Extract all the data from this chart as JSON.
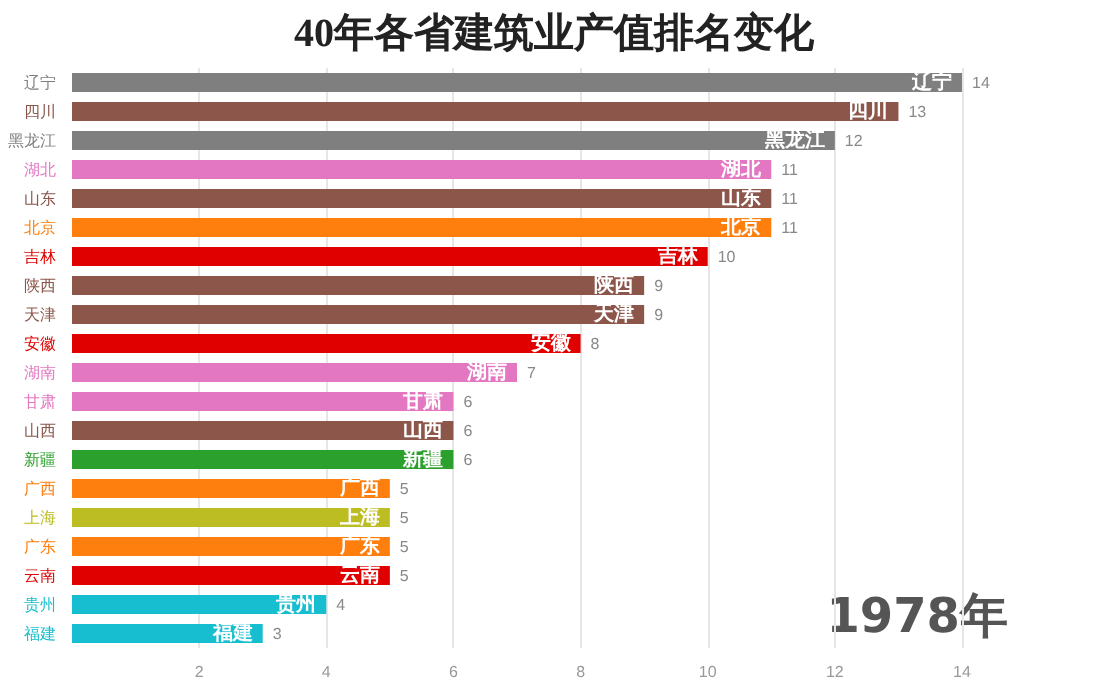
{
  "chart_data": {
    "type": "bar",
    "orientation": "horizontal",
    "title": "40年各省建筑业产值排名变化",
    "categories": [
      "辽宁",
      "四川",
      "黑龙江",
      "湖北",
      "山东",
      "北京",
      "吉林",
      "陕西",
      "天津",
      "安徽",
      "湖南",
      "甘肃",
      "山西",
      "新疆",
      "广西",
      "上海",
      "广东",
      "云南",
      "贵州",
      "福建"
    ],
    "values": [
      14,
      13,
      12,
      11,
      11,
      11,
      10,
      9,
      9,
      8,
      7,
      6,
      6,
      6,
      5,
      5,
      5,
      5,
      4,
      3
    ],
    "colors": [
      "#7f7f7f",
      "#8c564b",
      "#7f7f7f",
      "#e377c2",
      "#8c564b",
      "#ff7f0e",
      "#e00000",
      "#8c564b",
      "#8c564b",
      "#e00000",
      "#e377c2",
      "#e377c2",
      "#8c564b",
      "#2ca02c",
      "#ff7f0e",
      "#bcbd22",
      "#ff7f0e",
      "#e00000",
      "#17becf",
      "#17becf"
    ],
    "xlim": [
      0,
      14
    ],
    "xticks": [
      2,
      4,
      6,
      8,
      10,
      12,
      14
    ],
    "grid": "x",
    "data_labels": true,
    "annotations": [
      "1978年"
    ]
  }
}
